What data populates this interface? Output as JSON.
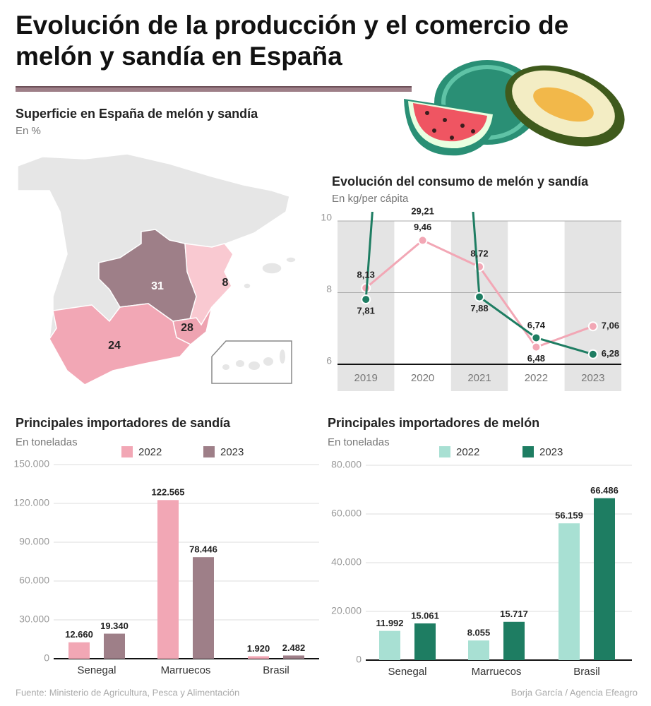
{
  "header": {
    "title": "Evolución de la producción y el comercio de melón y sandía en España"
  },
  "chart_data": [
    {
      "type": "map",
      "title": "Superficie en España de melón y sandía",
      "subtitle": "En %",
      "values": [
        31,
        8,
        28,
        24
      ],
      "value_labels": [
        "31",
        "8",
        "28",
        "24"
      ],
      "colors": [
        "#9e7f88",
        "#f9c9d1",
        "#eea3b1",
        "#f2a7b5"
      ]
    },
    {
      "type": "line",
      "title": "Evolución del consumo de melón y sandía",
      "subtitle": "En kg/per cápita",
      "categories": [
        "2019",
        "2020",
        "2021",
        "2022",
        "2023"
      ],
      "series": [
        {
          "color": "#f2a7b5",
          "values": [
            8.13,
            9.46,
            8.72,
            6.48,
            7.06
          ],
          "value_labels": [
            "8,13",
            "9,46",
            "8,72",
            "6,48",
            "7,06"
          ]
        },
        {
          "color": "#1e7d62",
          "values": [
            7.81,
            29.21,
            7.88,
            6.74,
            6.28
          ],
          "value_labels": [
            "7,81",
            "29,21",
            "7,88",
            "6,74",
            "6,28"
          ]
        }
      ],
      "ylim": [
        6,
        10
      ],
      "yticks": [
        6,
        8,
        10
      ],
      "grid": true
    },
    {
      "type": "bar",
      "title": "Principales importadores de sandía",
      "subtitle": "En toneladas",
      "categories": [
        "Senegal",
        "Marruecos",
        "Brasil"
      ],
      "series": [
        {
          "name": "2022",
          "color": "#f2a7b5",
          "values": [
            12660,
            122565,
            1920
          ],
          "value_labels": [
            "12.660",
            "122.565",
            "1.920"
          ]
        },
        {
          "name": "2023",
          "color": "#9e7f88",
          "values": [
            19340,
            78446,
            2482
          ],
          "value_labels": [
            "19.340",
            "78.446",
            "2.482"
          ]
        }
      ],
      "ylim": [
        0,
        150000
      ],
      "yticks": [
        0,
        {
          "value": 30000,
          "label": "30.000"
        },
        {
          "value": 60000,
          "label": "60.000"
        },
        {
          "value": 90000,
          "label": "90.000"
        },
        {
          "value": 120000,
          "label": "120.000"
        },
        {
          "value": 150000,
          "label": "150.000"
        }
      ],
      "grid": true
    },
    {
      "type": "bar",
      "title": "Principales importadores de melón",
      "subtitle": "En toneladas",
      "categories": [
        "Senegal",
        "Marruecos",
        "Brasil"
      ],
      "series": [
        {
          "name": "2022",
          "color": "#a8e0d3",
          "values": [
            11992,
            8055,
            56159
          ],
          "value_labels": [
            "11.992",
            "8.055",
            "56.159"
          ]
        },
        {
          "name": "2023",
          "color": "#1e7d62",
          "values": [
            15061,
            15717,
            66486
          ],
          "value_labels": [
            "15.061",
            "15.717",
            "66.486"
          ]
        }
      ],
      "ylim": [
        0,
        80000
      ],
      "yticks": [
        0,
        {
          "value": 20000,
          "label": "20.000"
        },
        {
          "value": 40000,
          "label": "40.000"
        },
        {
          "value": 60000,
          "label": "60.000"
        },
        {
          "value": 80000,
          "label": "80.000"
        }
      ],
      "grid": true
    }
  ],
  "footer": {
    "source": "Fuente: Ministerio de Agricultura, Pesca y Alimentación",
    "credit": "Borja García / Agencia Efeagro"
  }
}
